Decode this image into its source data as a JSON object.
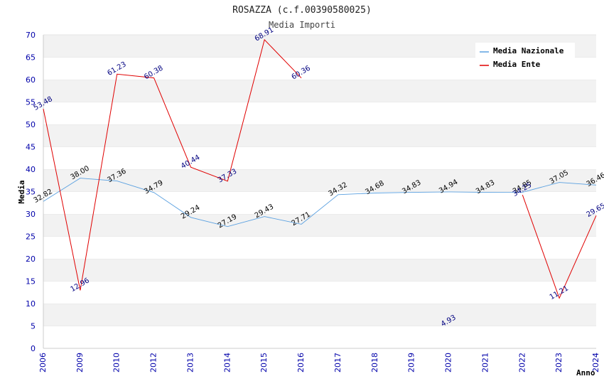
{
  "chart_data": {
    "type": "line",
    "title": "ROSAZZA (c.f.00390580025)",
    "subtitle": "Media Importi",
    "xlabel": "Anno",
    "ylabel": "Media",
    "ylim": [
      0,
      70
    ],
    "yticks": [
      "0",
      "5",
      "10",
      "15",
      "20",
      "25",
      "30",
      "35",
      "40",
      "45",
      "50",
      "55",
      "60",
      "65",
      "70"
    ],
    "categories": [
      "2006",
      "2009",
      "2010",
      "2012",
      "2013",
      "2014",
      "2015",
      "2016",
      "2017",
      "2018",
      "2019",
      "2020",
      "2021",
      "2022",
      "2023",
      "2024"
    ],
    "grid": "horizontal-bands",
    "legend_position": "top-right",
    "series": [
      {
        "name": "Media Nazionale",
        "color": "#5aa0e0",
        "values": [
          32.82,
          38.0,
          37.36,
          34.79,
          29.24,
          27.19,
          29.43,
          27.71,
          34.32,
          34.68,
          34.83,
          34.94,
          34.83,
          34.85,
          37.05,
          36.46
        ],
        "labels": [
          "32.82",
          "38.00",
          "37.36",
          "34.79",
          "29.24",
          "27.19",
          "29.43",
          "27.71",
          "34.32",
          "34.68",
          "34.83",
          "34.94",
          "34.83",
          "34.85",
          "37.05",
          "36.46"
        ]
      },
      {
        "name": "Media Ente",
        "color": "#e00000",
        "values": [
          53.48,
          12.96,
          61.23,
          60.38,
          40.44,
          37.33,
          68.91,
          60.36,
          null,
          null,
          null,
          4.93,
          null,
          34.25,
          11.21,
          29.65
        ],
        "labels": [
          "53.48",
          "12.96",
          "61.23",
          "60.38",
          "40.44",
          "37.33",
          "68.91",
          "60.36",
          null,
          null,
          null,
          "4.93",
          null,
          "34.25",
          "11.21",
          "29.65"
        ]
      }
    ]
  }
}
